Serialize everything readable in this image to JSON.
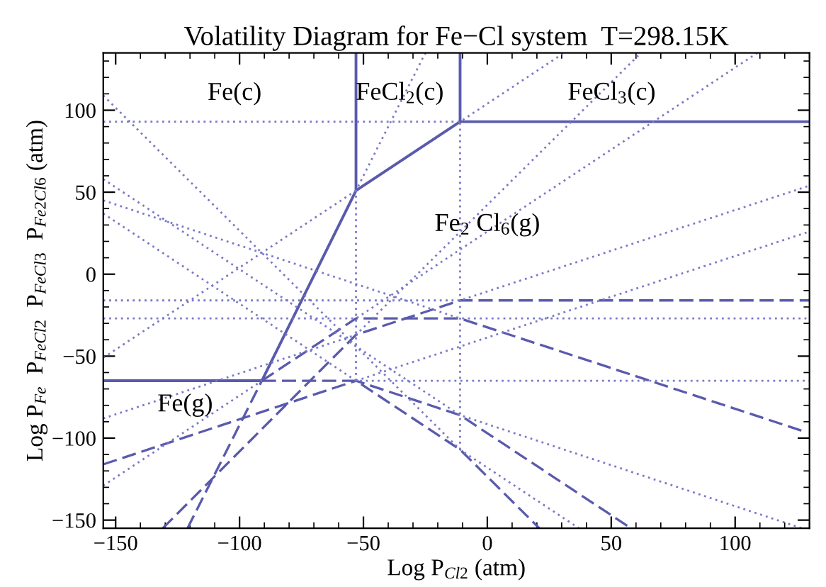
{
  "chart_data": {
    "type": "line",
    "title": "Volatility Diagram for Fe−Cl system  T=298.15K",
    "xlabel": "Log P$_{Cl2}$ (atm)",
    "ylabel": "Log P$_{Fe}$  P$_{FeCl2}$  P$_{FeCl3}$  P$_{Fe2Cl6}$ (atm)",
    "xlim": [
      -155,
      130
    ],
    "ylim": [
      -155,
      135
    ],
    "xticks": [
      -150,
      -100,
      -50,
      0,
      50,
      100
    ],
    "yticks": [
      -150,
      -100,
      -50,
      0,
      50,
      100
    ],
    "grid": false,
    "marker": "none",
    "annotations": [
      "Fe(c)",
      "FeCl$_{2}$(c)",
      "FeCl$_{3}$(c)",
      "Fe$_{2}$ Cl$_{6}$(g)",
      "Fe(g)"
    ],
    "series": [
      {
        "color": "#5a5aad",
        "line_style": "solid",
        "x": [
          -91,
          -53,
          -11,
          130
        ],
        "values": [
          -65,
          51,
          93,
          93
        ]
      },
      {
        "color": "#5a5aad",
        "line_style": "solid",
        "x": [
          -53,
          -53
        ],
        "values": [
          51,
          135
        ]
      },
      {
        "color": "#5a5aad",
        "line_style": "solid",
        "x": [
          -11,
          -11
        ],
        "values": [
          93,
          135
        ]
      },
      {
        "color": "#5a5aad",
        "line_style": "solid",
        "x": [
          -155,
          -91
        ],
        "values": [
          -65,
          -65
        ]
      },
      {
        "color": "#5a5aad",
        "line_style": "dashed",
        "x": [
          -91,
          -53,
          -11,
          21
        ],
        "values": [
          -65,
          -65,
          -107,
          -155
        ]
      },
      {
        "color": "#5a5aad",
        "line_style": "dashed",
        "x": [
          -121,
          -91
        ],
        "values": [
          -155,
          -65
        ]
      },
      {
        "color": "#5a5aad",
        "line_style": "dashed",
        "x": [
          -155,
          -53,
          -11,
          58
        ],
        "values": [
          -116,
          -65,
          -86,
          -155
        ]
      },
      {
        "color": "#5a5aad",
        "line_style": "dashed",
        "x": [
          -91,
          -53,
          -11,
          128
        ],
        "values": [
          -65,
          -27,
          -27,
          -96
        ]
      },
      {
        "color": "#5a5aad",
        "line_style": "dashed",
        "x": [
          -131,
          -53,
          -11,
          130
        ],
        "values": [
          -155,
          -37,
          -16,
          -16
        ]
      },
      {
        "color": "#7a7ac8",
        "line_style": "dotted",
        "x": [
          -155,
          -11,
          31
        ],
        "values": [
          93,
          93,
          135
        ]
      },
      {
        "color": "#7a7ac8",
        "line_style": "dotted",
        "x": [
          -155,
          -11,
          130
        ],
        "values": [
          -16,
          -16,
          54
        ]
      },
      {
        "color": "#7a7ac8",
        "line_style": "dotted",
        "x": [
          -155,
          -53,
          109
        ],
        "values": [
          -27,
          -27,
          135
        ]
      },
      {
        "color": "#7a7ac8",
        "line_style": "dotted",
        "x": [
          -155,
          -11,
          130
        ],
        "values": [
          45,
          -27,
          -27
        ]
      },
      {
        "color": "#7a7ac8",
        "line_style": "dotted",
        "x": [
          -155,
          -53,
          130
        ],
        "values": [
          37,
          -65,
          -65
        ]
      },
      {
        "color": "#7a7ac8",
        "line_style": "dotted",
        "x": [
          -53,
          -53,
          -25
        ],
        "values": [
          -65,
          51,
          135
        ]
      },
      {
        "color": "#7a7ac8",
        "line_style": "dotted",
        "x": [
          -11,
          -11
        ],
        "values": [
          -107,
          93
        ]
      },
      {
        "color": "#7a7ac8",
        "line_style": "dotted",
        "x": [
          -155,
          -53
        ],
        "values": [
          -51,
          51
        ]
      },
      {
        "color": "#7a7ac8",
        "line_style": "dotted",
        "x": [
          -155,
          -53,
          62
        ],
        "values": [
          -88,
          -37,
          135
        ]
      },
      {
        "color": "#7a7ac8",
        "line_style": "dotted",
        "x": [
          -155,
          -91
        ],
        "values": [
          -129,
          -65
        ]
      },
      {
        "color": "#7a7ac8",
        "line_style": "dotted",
        "x": [
          -53,
          130
        ],
        "values": [
          -65,
          26
        ]
      },
      {
        "color": "#7a7ac8",
        "line_style": "dotted",
        "x": [
          -155,
          -11,
          37
        ],
        "values": [
          109,
          -107,
          -155
        ]
      },
      {
        "color": "#7a7ac8",
        "line_style": "dotted",
        "x": [
          -155,
          -11,
          127
        ],
        "values": [
          58,
          -86,
          -155
        ]
      }
    ]
  }
}
